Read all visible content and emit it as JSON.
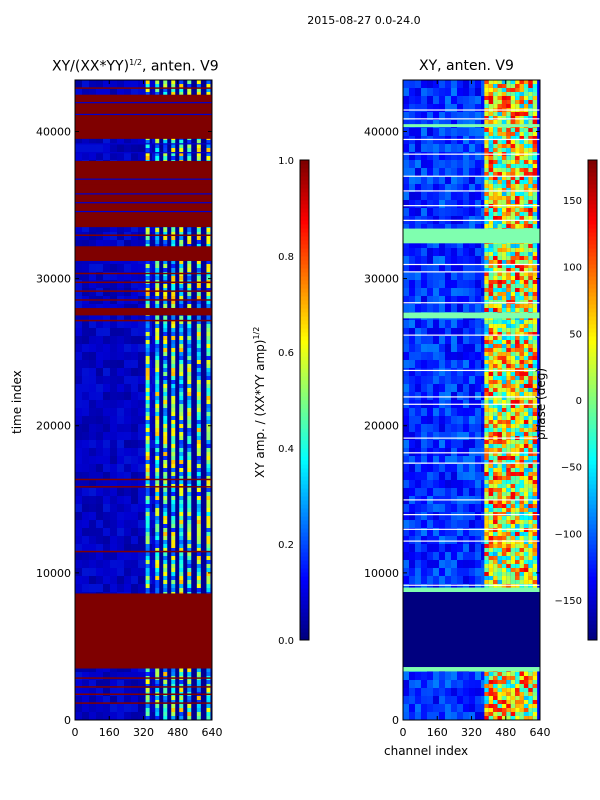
{
  "figure_title": "2015-08-27 0.0-24.0",
  "colors": {
    "colormap": "jet",
    "jet_stops": [
      "#00007f",
      "#0000ff",
      "#007fff",
      "#00ffff",
      "#7fff7f",
      "#ffff00",
      "#ff7f00",
      "#ff0000",
      "#7f0000"
    ]
  },
  "chart_data": [
    {
      "type": "heatmap",
      "title_main": "XY/(XX*YY)",
      "title_sup": "1/2",
      "title_suffix": ", anten. V9",
      "xlabel": "",
      "ylabel": "time index",
      "xlim": [
        0,
        640
      ],
      "ylim": [
        0,
        43500
      ],
      "xticks": [
        0,
        160,
        320,
        480,
        640
      ],
      "yticks": [
        0,
        10000,
        20000,
        30000,
        40000
      ],
      "colorbar": {
        "label_main": "XY amp. / (XX*YY amp)",
        "label_sup": "1/2",
        "range": [
          0.0,
          1.0
        ],
        "ticks": [
          "0.0",
          "0.2",
          "0.4",
          "0.6",
          "0.8",
          "1.0"
        ]
      },
      "flagged_time_ranges": [
        [
          3500,
          8600
        ],
        [
          27500,
          28000
        ],
        [
          31200,
          32200
        ],
        [
          33500,
          38000
        ],
        [
          39500,
          42500
        ]
      ],
      "active_channel_range": [
        300,
        640
      ]
    },
    {
      "type": "heatmap",
      "title_main": "XY, anten. V9",
      "xlabel": "channel index",
      "ylabel": "",
      "xlim": [
        0,
        640
      ],
      "ylim": [
        0,
        43500
      ],
      "xticks": [
        0,
        160,
        320,
        480,
        640
      ],
      "yticks": [
        0,
        10000,
        20000,
        30000,
        40000
      ],
      "colorbar": {
        "label_main": "phase (deg)",
        "range": [
          -180,
          180
        ],
        "ticks": [
          "150",
          "100",
          "50",
          "0",
          "−50",
          "−100",
          "−150"
        ]
      },
      "active_channel_range": [
        380,
        620
      ]
    }
  ]
}
